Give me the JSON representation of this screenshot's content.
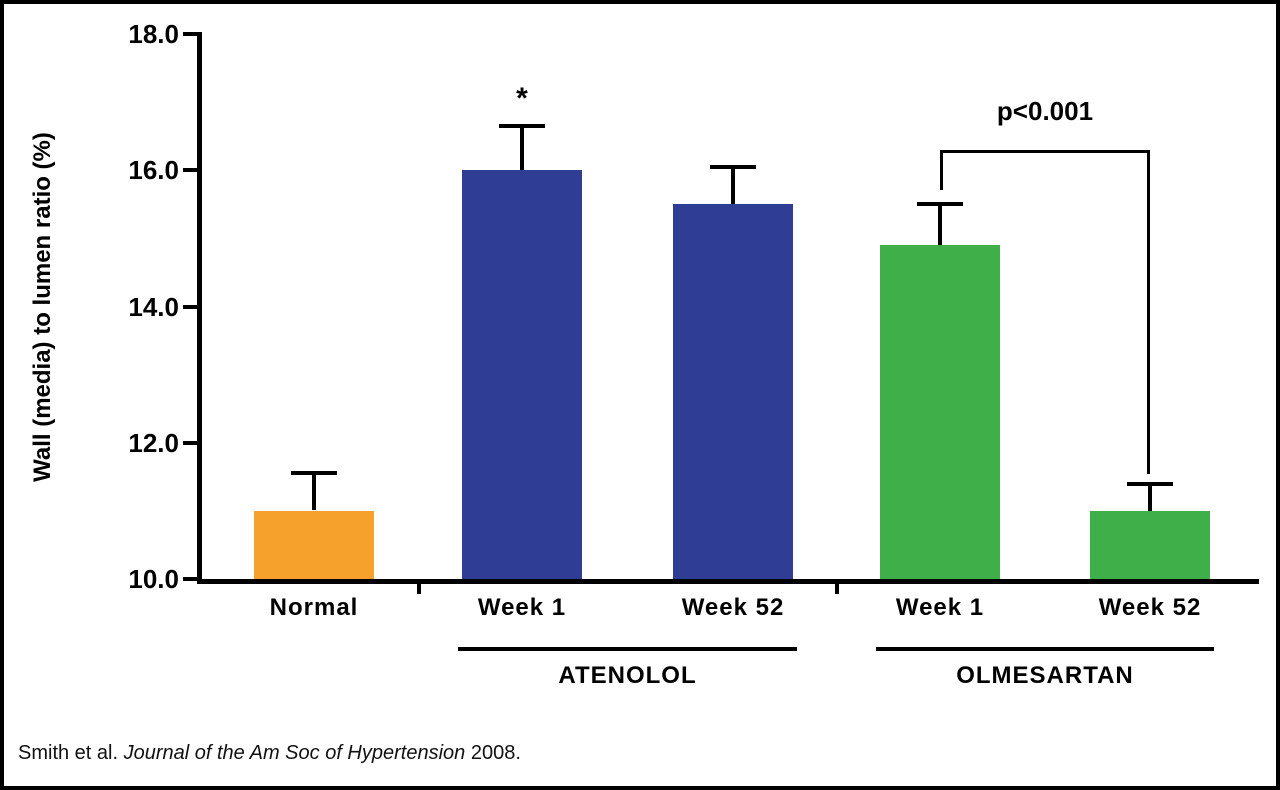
{
  "figure": {
    "citation": {
      "prefix": "Smith et al. ",
      "italic": "Journal of the Am Soc of Hypertension",
      "suffix": " 2008."
    }
  },
  "chart_data": {
    "type": "bar",
    "title": "",
    "xlabel": "",
    "ylabel": "Wall (media) to lumen ratio (%)",
    "ylim": [
      10.0,
      18.0
    ],
    "yticks": [
      "10.0",
      "12.0",
      "14.0",
      "16.0",
      "18.0"
    ],
    "grid": false,
    "legend": false,
    "categories": [
      "Normal",
      "Week 1",
      "Week 52",
      "Week 1",
      "Week 52"
    ],
    "values": [
      11.0,
      16.0,
      15.5,
      14.9,
      11.0
    ],
    "errors_upper": [
      0.55,
      0.65,
      0.55,
      0.6,
      0.4
    ],
    "bar_colors": [
      "#F5A12B",
      "#2F3D94",
      "#2F3D94",
      "#3FAF4A",
      "#3FAF4A"
    ],
    "groups": [
      {
        "label": "ATENOLOL",
        "bar_indices": [
          1,
          2
        ]
      },
      {
        "label": "OLMESARTAN",
        "bar_indices": [
          3,
          4
        ]
      }
    ],
    "annotations": [
      {
        "type": "asterisk",
        "bar_index": 1,
        "text": "*"
      },
      {
        "type": "significance-bracket",
        "between_bar_indices": [
          3,
          4
        ],
        "text": "p<0.001"
      }
    ]
  }
}
